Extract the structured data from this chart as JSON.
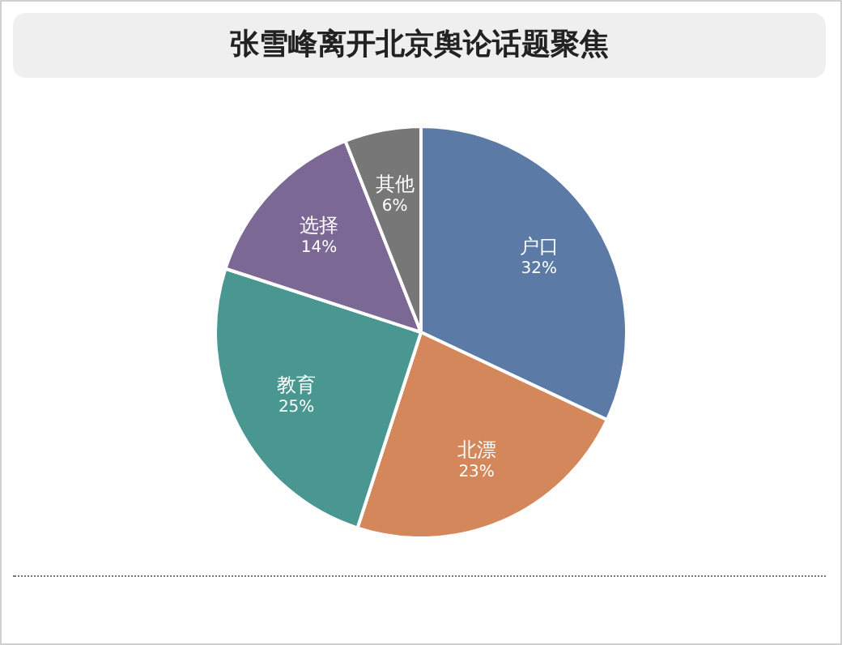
{
  "chart_data": {
    "type": "pie",
    "title": "张雪峰离开北京舆论话题聚焦",
    "categories": [
      "户口",
      "北漂",
      "教育",
      "选择",
      "其他"
    ],
    "values": [
      32,
      23,
      25,
      14,
      6
    ],
    "value_labels": [
      "32%",
      "23%",
      "25%",
      "14%",
      "6%"
    ],
    "colors": [
      "#5b7ba6",
      "#d4875a",
      "#4a9690",
      "#7b6894",
      "#777777"
    ],
    "legend": false
  }
}
